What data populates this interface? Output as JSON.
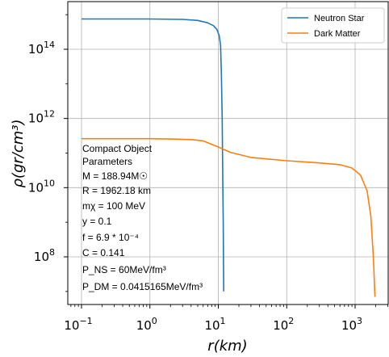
{
  "chart_data": {
    "type": "line",
    "xlabel": "r(km)",
    "ylabel": "ρ(gr/cm³)",
    "xscale": "log",
    "yscale": "log",
    "grid": true,
    "legend_position": "top-right",
    "x_ticks": [
      {
        "value": 0.1,
        "base": "10",
        "exp": "−1"
      },
      {
        "value": 1,
        "base": "10",
        "exp": "0"
      },
      {
        "value": 10,
        "base": "10",
        "exp": "1"
      },
      {
        "value": 100,
        "base": "10",
        "exp": "2"
      },
      {
        "value": 1000,
        "base": "10",
        "exp": "3"
      }
    ],
    "y_ticks": [
      {
        "value": 100000000.0,
        "base": "10",
        "exp": "8"
      },
      {
        "value": 10000000000.0,
        "base": "10",
        "exp": "10"
      },
      {
        "value": 1000000000000.0,
        "base": "10",
        "exp": "12"
      },
      {
        "value": 100000000000000.0,
        "base": "10",
        "exp": "14"
      }
    ],
    "series": [
      {
        "name": "Neutron Star",
        "color": "#1f77b4",
        "points": [
          [
            0.1,
            750000000000000.0
          ],
          [
            1,
            750000000000000.0
          ],
          [
            3,
            730000000000000.0
          ],
          [
            5,
            680000000000000.0
          ],
          [
            7,
            580000000000000.0
          ],
          [
            8.5,
            480000000000000.0
          ],
          [
            9.5,
            380000000000000.0
          ],
          [
            10.3,
            250000000000000.0
          ],
          [
            10.8,
            130000000000000.0
          ],
          [
            11.1,
            20000000000000.0
          ],
          [
            11.4,
            1000000000000.0
          ],
          [
            11.6,
            20000000000.0
          ],
          [
            11.8,
            1000000000.0
          ],
          [
            12.0,
            10000000.0
          ]
        ]
      },
      {
        "name": "Dark Matter",
        "color": "#ff7f0e",
        "points": [
          [
            0.1,
            260000000000.0
          ],
          [
            1,
            260000000000.0
          ],
          [
            2,
            255000000000.0
          ],
          [
            4,
            245000000000.0
          ],
          [
            6,
            225000000000.0
          ],
          [
            10,
            150000000000.0
          ],
          [
            15,
            105000000000.0
          ],
          [
            30,
            75000000000.0
          ],
          [
            100,
            60000000000.0
          ],
          [
            300,
            52000000000.0
          ],
          [
            600,
            46000000000.0
          ],
          [
            900,
            37000000000.0
          ],
          [
            1200,
            23000000000.0
          ],
          [
            1500,
            8000000000.0
          ],
          [
            1700,
            1500000000.0
          ],
          [
            1850,
            100000000.0
          ],
          [
            1950,
            7000000.0
          ]
        ]
      }
    ],
    "annotation": {
      "lines": [
        "Compact Object",
        "Parameters",
        "M = 188.94M☉",
        " R = 1962.18 km",
        "mχ = 100 MeV",
        "y = 0.1",
        "f = 6.9 * 10⁻⁴",
        "C = 0.141",
        "P_NS = 60MeV/fm³",
        "P_DM = 0.0415165MeV/fm³"
      ]
    }
  }
}
